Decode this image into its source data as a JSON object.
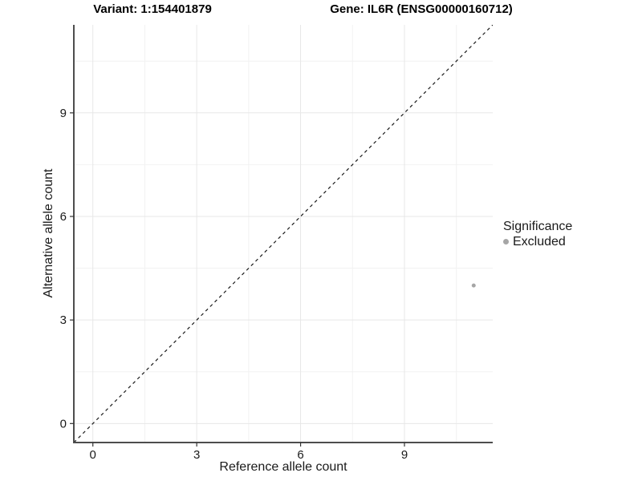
{
  "chart_data": {
    "type": "scatter",
    "titles": {
      "left": "Variant: 1:154401879",
      "right": "Gene: IL6R (ENSG00000160712)"
    },
    "xlabel": "Reference allele count",
    "ylabel": "Alternative allele count",
    "xlim": [
      -0.55,
      11.55
    ],
    "ylim": [
      -0.55,
      11.55
    ],
    "xticks": [
      0,
      3,
      6,
      9
    ],
    "yticks": [
      0,
      3,
      6,
      9
    ],
    "xminor": [
      1.5,
      4.5,
      7.5,
      10.5
    ],
    "yminor": [
      1.5,
      4.5,
      7.5,
      10.5
    ],
    "grid": "on",
    "identity_line": {
      "slope": 1,
      "intercept": 0,
      "style": "dashed",
      "color": "#1a1a1a"
    },
    "points": [
      {
        "x": 11,
        "y": 4,
        "series": "Excluded"
      }
    ],
    "point_style": {
      "color": "#a6a6a6",
      "radius": 2.5
    },
    "legend": {
      "title": "Significance",
      "position": "right",
      "items": [
        {
          "label": "Excluded",
          "color": "#a6a6a6"
        }
      ]
    },
    "colors": {
      "background": "#ffffff",
      "grid_major": "#e7e7e7",
      "grid_minor": "#f2f2f2",
      "axis_line": "#4d4d4d",
      "tick": "#333333",
      "tick_label": "#1a1a1a"
    }
  }
}
